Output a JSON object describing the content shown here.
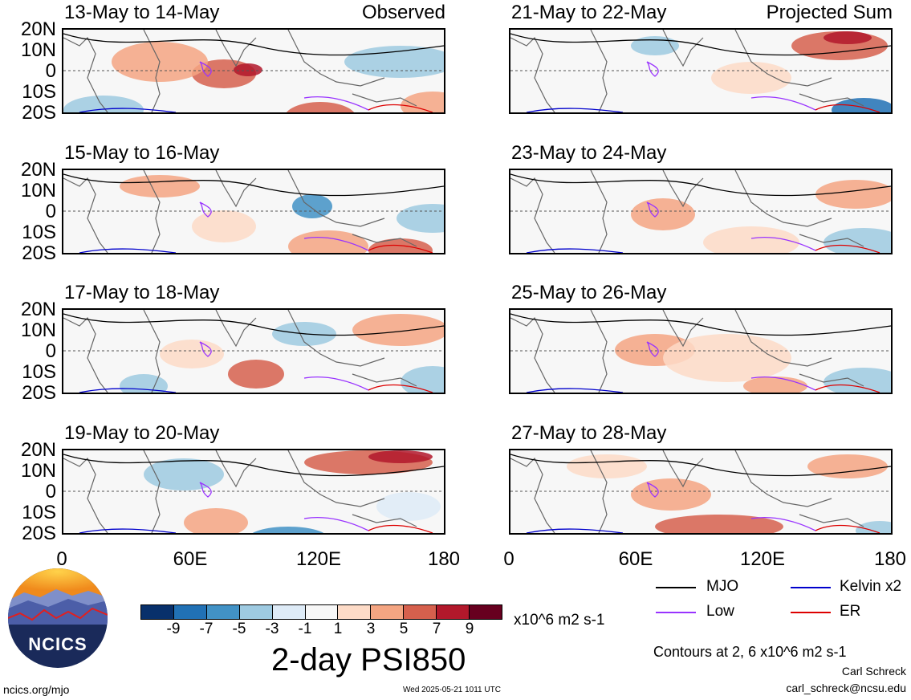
{
  "panels_left": [
    {
      "title": "13-May to 14-May",
      "label": "Observed"
    },
    {
      "title": "15-May to 16-May",
      "label": ""
    },
    {
      "title": "17-May to 18-May",
      "label": ""
    },
    {
      "title": "19-May to 20-May",
      "label": ""
    }
  ],
  "panels_right": [
    {
      "title": "21-May to 22-May",
      "label": "Projected Sum"
    },
    {
      "title": "23-May to 24-May",
      "label": ""
    },
    {
      "title": "25-May to 26-May",
      "label": ""
    },
    {
      "title": "27-May to 28-May",
      "label": ""
    }
  ],
  "lat_labels": [
    "20N",
    "10N",
    "0",
    "10S",
    "20S"
  ],
  "lon_labels": [
    "0",
    "60E",
    "120E",
    "180"
  ],
  "colorbar": {
    "colors": [
      "#08306b",
      "#2171b5",
      "#4292c6",
      "#9ecae1",
      "#deebf7",
      "#f7f7f7",
      "#fddbc7",
      "#f4a582",
      "#d6604d",
      "#b2182b",
      "#67001f"
    ],
    "ticks": [
      "-9",
      "-7",
      "-5",
      "-3",
      "-1",
      "1",
      "3",
      "5",
      "7",
      "9"
    ],
    "units": "x10^6 m2 s-1"
  },
  "main_title": "2-day PSI850",
  "legend": [
    {
      "name": "MJO",
      "color": "#000000"
    },
    {
      "name": "Kelvin x2",
      "color": "#0000cc"
    },
    {
      "name": "Low",
      "color": "#9933ff"
    },
    {
      "name": "ER",
      "color": "#dd0000"
    }
  ],
  "contours_note": "Contours at 2, 6 x10^6 m2 s-1",
  "author": "Carl Schreck",
  "email": "carl_schreck@ncsu.edu",
  "site": "ncics.org/mjo",
  "timestamp": "Wed 2025-05-21 1011 UTC",
  "logo_text": "NCICS"
}
